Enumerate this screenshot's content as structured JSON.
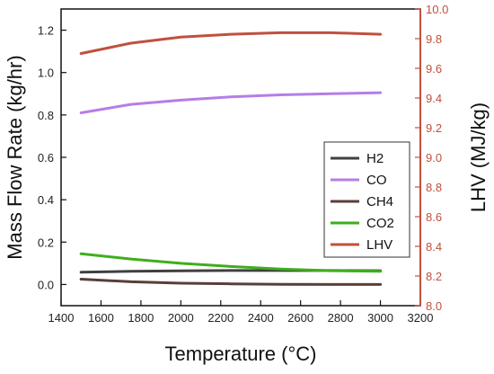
{
  "chart_data": {
    "type": "line",
    "xlabel": "Temperature (°C)",
    "ylabel": "Mass Flow Rate (kg/hr)",
    "y2label": "LHV (MJ/kg)",
    "xlim": [
      1400,
      3200
    ],
    "ylim": [
      -0.1,
      1.3
    ],
    "y2lim": [
      8.0,
      10.0
    ],
    "xticks": [
      "1400",
      "1600",
      "1800",
      "2000",
      "2200",
      "2400",
      "2600",
      "2800",
      "3000",
      "3200"
    ],
    "yticks": [
      "0.0",
      "0.2",
      "0.4",
      "0.6",
      "0.8",
      "1.0",
      "1.2"
    ],
    "y2ticks": [
      "8.0",
      "8.2",
      "8.4",
      "8.6",
      "8.8",
      "9.0",
      "9.2",
      "9.4",
      "9.6",
      "9.8",
      "10.0"
    ],
    "x": [
      1500,
      1750,
      2000,
      2250,
      2500,
      2750,
      3000
    ],
    "series": [
      {
        "name": "H2",
        "axis": "left",
        "color": "#404040",
        "values": [
          0.058,
          0.062,
          0.064,
          0.066,
          0.066,
          0.066,
          0.065
        ]
      },
      {
        "name": "CO",
        "axis": "left",
        "color": "#b57ee6",
        "values": [
          0.81,
          0.85,
          0.87,
          0.885,
          0.895,
          0.9,
          0.905
        ]
      },
      {
        "name": "CH4",
        "axis": "left",
        "color": "#5a3e38",
        "values": [
          0.025,
          0.013,
          0.006,
          0.003,
          0.001,
          0.0,
          0.0
        ]
      },
      {
        "name": "CO2",
        "axis": "left",
        "color": "#3fae1d",
        "values": [
          0.145,
          0.12,
          0.1,
          0.085,
          0.073,
          0.065,
          0.062
        ]
      },
      {
        "name": "LHV",
        "axis": "right",
        "color": "#c0503e",
        "values": [
          9.7,
          9.77,
          9.81,
          9.83,
          9.84,
          9.84,
          9.83
        ]
      }
    ],
    "legend": "center-right",
    "grid": false,
    "right_axis_color": "#c0503e"
  }
}
